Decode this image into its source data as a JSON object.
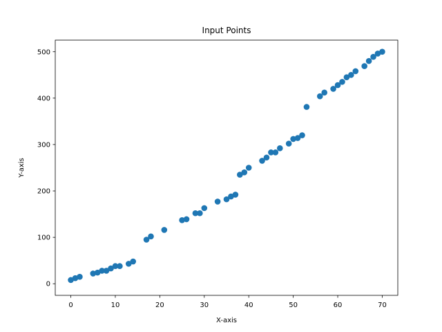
{
  "chart_data": {
    "type": "scatter",
    "title": "Input Points",
    "xlabel": "X-axis",
    "ylabel": "Y-axis",
    "xlim": [
      -3.5,
      73.5
    ],
    "ylim": [
      -25,
      525
    ],
    "xticks": [
      0,
      10,
      20,
      30,
      40,
      50,
      60,
      70
    ],
    "yticks": [
      0,
      100,
      200,
      300,
      400,
      500
    ],
    "grid": false,
    "legend": "none",
    "marker_color": "#1f77b4",
    "series": [
      {
        "x": [
          0,
          1,
          2,
          5,
          6,
          7,
          8,
          9,
          10,
          11,
          13,
          14,
          17,
          18,
          21,
          25,
          26,
          28,
          29,
          30,
          33,
          35,
          36,
          37,
          38,
          39,
          40,
          43,
          44,
          45,
          46,
          47,
          49,
          50,
          51,
          52,
          53,
          56,
          57,
          59,
          60,
          61,
          62,
          63,
          64,
          66,
          67,
          68,
          69,
          70
        ],
        "y": [
          8,
          12,
          15,
          22,
          24,
          28,
          28,
          33,
          38,
          38,
          43,
          48,
          95,
          102,
          116,
          137,
          139,
          152,
          152,
          163,
          177,
          182,
          188,
          192,
          235,
          240,
          250,
          265,
          272,
          283,
          283,
          292,
          302,
          312,
          314,
          320,
          381,
          404,
          412,
          420,
          428,
          435,
          445,
          450,
          458,
          469,
          480,
          489,
          496,
          500
        ]
      }
    ]
  }
}
